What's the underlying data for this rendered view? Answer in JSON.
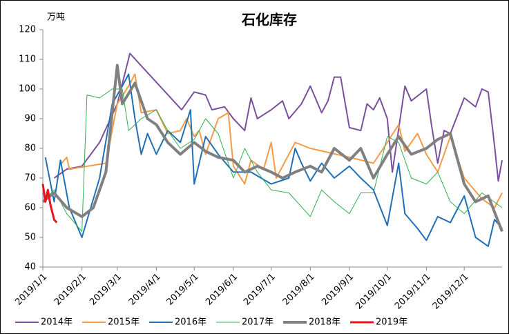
{
  "chart_data": {
    "type": "line",
    "title": "石化库存",
    "y_unit": "万吨",
    "xlim": [
      "2019/1/1",
      "2019/12/31"
    ],
    "xticks": [
      "2019/1/1",
      "2019/2/1",
      "2019/3/1",
      "2019/4/1",
      "2019/5/1",
      "2019/6/1",
      "2019/7/1",
      "2019/8/1",
      "2019/9/1",
      "2019/10/1",
      "2019/11/1",
      "2019/12/1"
    ],
    "ylim": [
      40,
      120
    ],
    "yticks": [
      40,
      50,
      60,
      70,
      80,
      90,
      100,
      110,
      120
    ],
    "grid": false,
    "legend": "bottom",
    "series": [
      {
        "name": "2014年",
        "color": "#7a4f9f",
        "line_width": 2,
        "x": [
          "2019/1/10",
          "2019/1/20",
          "2019/2/1",
          "2019/2/15",
          "2019/3/1",
          "2019/3/11",
          "2019/4/21",
          "2019/5/1",
          "2019/5/10",
          "2019/5/15",
          "2019/5/25",
          "2019/6/1",
          "2019/6/10",
          "2019/6/15",
          "2019/6/20",
          "2019/7/1",
          "2019/7/10",
          "2019/7/15",
          "2019/7/25",
          "2019/8/1",
          "2019/8/5",
          "2019/8/10",
          "2019/8/15",
          "2019/8/20",
          "2019/8/25",
          "2019/9/1",
          "2019/9/10",
          "2019/9/15",
          "2019/9/20",
          "2019/9/25",
          "2019/10/1",
          "2019/10/5",
          "2019/10/15",
          "2019/10/20",
          "2019/11/1",
          "2019/11/5",
          "2019/11/10",
          "2019/11/15",
          "2019/11/20",
          "2019/12/1",
          "2019/12/10",
          "2019/12/15",
          "2019/12/20",
          "2019/12/25",
          "2019/12/28",
          "2019/12/31"
        ],
        "values": [
          70,
          73,
          74,
          82,
          95,
          112,
          93,
          99,
          98,
          93,
          94,
          90,
          86,
          97,
          90,
          93,
          96,
          90,
          95,
          101,
          97,
          92,
          96,
          104,
          104,
          87,
          86,
          95,
          93,
          97,
          90,
          72,
          101,
          96,
          100,
          88,
          75,
          86,
          85,
          97,
          94,
          100,
          99,
          81,
          69,
          76
        ]
      },
      {
        "name": "2015年",
        "color": "#f59a46",
        "line_width": 2,
        "x": [
          "2019/1/16",
          "2019/1/20",
          "2019/1/22",
          "2019/2/20",
          "2019/3/1",
          "2019/3/10",
          "2019/3/15",
          "2019/3/20",
          "2019/4/1",
          "2019/4/10",
          "2019/4/20",
          "2019/4/25",
          "2019/5/1",
          "2019/5/5",
          "2019/5/10",
          "2019/5/20",
          "2019/5/28",
          "2019/6/1",
          "2019/6/10",
          "2019/6/15",
          "2019/6/25",
          "2019/7/1",
          "2019/7/5",
          "2019/7/20",
          "2019/8/1",
          "2019/9/1",
          "2019/9/20",
          "2019/10/1",
          "2019/10/10",
          "2019/10/15",
          "2019/10/25",
          "2019/11/1",
          "2019/11/10",
          "2019/11/20",
          "2019/12/1",
          "2019/12/15",
          "2019/12/25",
          "2019/12/31"
        ],
        "values": [
          75,
          77,
          73,
          75,
          95,
          101,
          105,
          92,
          93,
          85,
          86,
          90,
          84,
          86,
          78,
          90,
          92,
          74,
          68,
          76,
          73,
          82,
          70,
          82,
          80,
          77,
          75,
          82,
          88,
          79,
          85,
          78,
          72,
          84,
          70,
          63,
          60,
          65
        ]
      },
      {
        "name": "2016年",
        "color": "#1f6fb5",
        "line_width": 2,
        "x": [
          "2019/1/3",
          "2019/1/10",
          "2019/1/15",
          "2019/1/22",
          "2019/2/1",
          "2019/2/15",
          "2019/2/25",
          "2019/3/5",
          "2019/3/10",
          "2019/3/15",
          "2019/3/20",
          "2019/3/25",
          "2019/4/1",
          "2019/4/10",
          "2019/4/20",
          "2019/4/28",
          "2019/5/1",
          "2019/5/10",
          "2019/5/20",
          "2019/6/1",
          "2019/6/15",
          "2019/7/1",
          "2019/7/15",
          "2019/7/20",
          "2019/7/25",
          "2019/8/1",
          "2019/8/10",
          "2019/8/20",
          "2019/9/1",
          "2019/9/10",
          "2019/9/20",
          "2019/10/1",
          "2019/10/10",
          "2019/10/15",
          "2019/10/25",
          "2019/11/1",
          "2019/11/10",
          "2019/11/20",
          "2019/12/1",
          "2019/12/10",
          "2019/12/20",
          "2019/12/25",
          "2019/12/31"
        ],
        "values": [
          77,
          62,
          76,
          60,
          50,
          70,
          95,
          101,
          105,
          90,
          78,
          85,
          78,
          86,
          82,
          93,
          68,
          84,
          78,
          72,
          72,
          68,
          70,
          80,
          75,
          69,
          75,
          70,
          74,
          70,
          66,
          54,
          75,
          58,
          53,
          49,
          57,
          55,
          64,
          50,
          47,
          56,
          53
        ]
      },
      {
        "name": "2017年",
        "color": "#2fae4e",
        "line_width": 1,
        "x": [
          "2019/1/1",
          "2019/1/10",
          "2019/1/20",
          "2019/2/1",
          "2019/2/5",
          "2019/2/15",
          "2019/2/25",
          "2019/3/5",
          "2019/3/10",
          "2019/3/20",
          "2019/4/1",
          "2019/4/10",
          "2019/4/20",
          "2019/5/1",
          "2019/5/10",
          "2019/5/20",
          "2019/6/1",
          "2019/6/10",
          "2019/6/20",
          "2019/7/1",
          "2019/7/15",
          "2019/8/1",
          "2019/8/10",
          "2019/8/20",
          "2019/9/1",
          "2019/9/10",
          "2019/9/20",
          "2019/10/1",
          "2019/10/10",
          "2019/10/20",
          "2019/11/1",
          "2019/11/10",
          "2019/11/20",
          "2019/12/1",
          "2019/12/15",
          "2019/12/31"
        ],
        "values": [
          62,
          66,
          58,
          52,
          98,
          97,
          100,
          100,
          86,
          90,
          93,
          86,
          80,
          83,
          90,
          85,
          70,
          80,
          72,
          66,
          65,
          57,
          66,
          62,
          58,
          65,
          65,
          84,
          82,
          70,
          68,
          72,
          62,
          58,
          65,
          60
        ]
      },
      {
        "name": "2018年",
        "color": "#808080",
        "line_width": 4,
        "x": [
          "2019/1/1",
          "2019/1/10",
          "2019/1/20",
          "2019/2/1",
          "2019/2/10",
          "2019/2/20",
          "2019/3/1",
          "2019/3/5",
          "2019/3/15",
          "2019/3/25",
          "2019/4/1",
          "2019/4/10",
          "2019/4/20",
          "2019/5/1",
          "2019/5/10",
          "2019/5/20",
          "2019/6/1",
          "2019/6/10",
          "2019/6/20",
          "2019/7/1",
          "2019/7/10",
          "2019/7/20",
          "2019/8/1",
          "2019/8/10",
          "2019/8/20",
          "2019/9/1",
          "2019/9/10",
          "2019/9/20",
          "2019/10/1",
          "2019/10/10",
          "2019/10/20",
          "2019/11/1",
          "2019/11/10",
          "2019/11/20",
          "2019/12/1",
          "2019/12/10",
          "2019/12/20",
          "2019/12/31"
        ],
        "values": [
          62,
          65,
          60,
          57,
          60,
          72,
          108,
          95,
          102,
          90,
          88,
          82,
          78,
          82,
          79,
          77,
          76,
          72,
          74,
          72,
          70,
          72,
          74,
          72,
          80,
          76,
          80,
          70,
          78,
          84,
          78,
          80,
          83,
          85,
          68,
          62,
          64,
          52
        ]
      },
      {
        "name": "2019年",
        "color": "#e8141b",
        "line_width": 3,
        "x": [
          "2019/1/1",
          "2019/1/3",
          "2019/1/5",
          "2019/1/7",
          "2019/1/10",
          "2019/1/12"
        ],
        "values": [
          68,
          62,
          66,
          61,
          56,
          55
        ]
      }
    ]
  }
}
